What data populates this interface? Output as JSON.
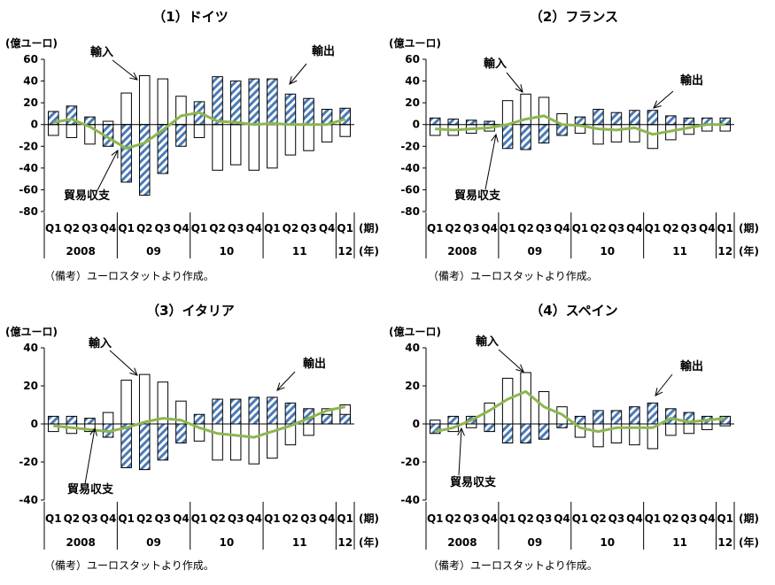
{
  "note": "（備考）ユーロスタットより作成。",
  "colors": {
    "export_bar": "#4a7ab8",
    "export_hatch_bg": "#ffffff",
    "import_bar_fill": "#ffffff",
    "balance_line": "#8db650",
    "axis": "#000000"
  },
  "chart_data": [
    {
      "type": "bar",
      "title": "（1）ドイツ",
      "unit_label": "(億ユーロ)",
      "period_label": "(期)",
      "year_label": "(年)",
      "categories": [
        "Q1",
        "Q2",
        "Q3",
        "Q4",
        "Q1",
        "Q2",
        "Q3",
        "Q4",
        "Q1",
        "Q2",
        "Q3",
        "Q4",
        "Q1",
        "Q2",
        "Q3",
        "Q4",
        "Q1"
      ],
      "year_groups": [
        {
          "label": "2008",
          "count": 4
        },
        {
          "label": "09",
          "count": 4
        },
        {
          "label": "10",
          "count": 4
        },
        {
          "label": "11",
          "count": 4
        },
        {
          "label": "12",
          "count": 1
        }
      ],
      "ylim": [
        -80,
        60
      ],
      "yticks": [
        60,
        40,
        20,
        0,
        -20,
        -40,
        -60,
        -80
      ],
      "annotations": {
        "export": "輸出",
        "import": "輸入",
        "balance": "貿易収支"
      },
      "series": [
        {
          "name": "輸出",
          "kind": "bar_hatched",
          "values": [
            12,
            17,
            7,
            -20,
            -53,
            -65,
            -45,
            -20,
            21,
            44,
            40,
            42,
            42,
            28,
            24,
            14,
            15
          ]
        },
        {
          "name": "輸入",
          "kind": "bar_outline",
          "values": [
            -10,
            -12,
            -18,
            3,
            29,
            45,
            42,
            26,
            -12,
            -42,
            -37,
            -42,
            -40,
            -28,
            -24,
            -16,
            -11
          ]
        },
        {
          "name": "貿易収支",
          "kind": "line",
          "values": [
            2,
            5,
            -2,
            -12,
            -22,
            -17,
            -5,
            8,
            11,
            3,
            2,
            0,
            1,
            0,
            0,
            0,
            5
          ]
        }
      ]
    },
    {
      "type": "bar",
      "title": "（2）フランス",
      "unit_label": "(億ユーロ)",
      "period_label": "(期)",
      "year_label": "(年)",
      "categories": [
        "Q1",
        "Q2",
        "Q3",
        "Q4",
        "Q1",
        "Q2",
        "Q3",
        "Q4",
        "Q1",
        "Q2",
        "Q3",
        "Q4",
        "Q1",
        "Q2",
        "Q3",
        "Q4",
        "Q1"
      ],
      "year_groups": [
        {
          "label": "2008",
          "count": 4
        },
        {
          "label": "09",
          "count": 4
        },
        {
          "label": "10",
          "count": 4
        },
        {
          "label": "11",
          "count": 4
        },
        {
          "label": "12",
          "count": 1
        }
      ],
      "ylim": [
        -80,
        60
      ],
      "yticks": [
        60,
        40,
        20,
        0,
        -20,
        -40,
        -60,
        -80
      ],
      "annotations": {
        "export": "輸出",
        "import": "輸入",
        "balance": "貿易収支"
      },
      "series": [
        {
          "name": "輸出",
          "kind": "bar_hatched",
          "values": [
            6,
            5,
            4,
            3,
            -22,
            -23,
            -17,
            -10,
            7,
            14,
            11,
            13,
            13,
            8,
            6,
            6,
            6
          ]
        },
        {
          "name": "輸入",
          "kind": "bar_outline",
          "values": [
            -10,
            -10,
            -8,
            -6,
            22,
            28,
            25,
            10,
            -8,
            -18,
            -16,
            -16,
            -22,
            -14,
            -9,
            -6,
            -6
          ]
        },
        {
          "name": "貿易収支",
          "kind": "line",
          "values": [
            -4,
            -5,
            -4,
            -3,
            0,
            5,
            8,
            0,
            -1,
            -4,
            -5,
            -3,
            -9,
            -6,
            -3,
            0,
            0
          ]
        }
      ]
    },
    {
      "type": "bar",
      "title": "（3）イタリア",
      "unit_label": "(億ユーロ)",
      "period_label": "(期)",
      "year_label": "(年)",
      "categories": [
        "Q1",
        "Q2",
        "Q3",
        "Q4",
        "Q1",
        "Q2",
        "Q3",
        "Q4",
        "Q1",
        "Q2",
        "Q3",
        "Q4",
        "Q1",
        "Q2",
        "Q3",
        "Q4",
        "Q1"
      ],
      "year_groups": [
        {
          "label": "2008",
          "count": 4
        },
        {
          "label": "09",
          "count": 4
        },
        {
          "label": "10",
          "count": 4
        },
        {
          "label": "11",
          "count": 4
        },
        {
          "label": "12",
          "count": 1
        }
      ],
      "ylim": [
        -40,
        40
      ],
      "yticks": [
        40,
        20,
        0,
        -20,
        -40
      ],
      "annotations": {
        "export": "輸出",
        "import": "輸入",
        "balance": "貿易収支"
      },
      "series": [
        {
          "name": "輸出",
          "kind": "bar_hatched",
          "values": [
            4,
            4,
            3,
            -7,
            -23,
            -24,
            -19,
            -10,
            5,
            13,
            13,
            14,
            14,
            11,
            8,
            5,
            5
          ]
        },
        {
          "name": "輸入",
          "kind": "bar_outline",
          "values": [
            -4,
            -5,
            -4,
            6,
            23,
            26,
            22,
            12,
            -9,
            -19,
            -19,
            -21,
            -18,
            -11,
            -6,
            8,
            10
          ]
        },
        {
          "name": "貿易収支",
          "kind": "line",
          "values": [
            -1,
            -2,
            -3,
            -4,
            -2,
            1,
            3,
            2,
            -2,
            -5,
            -6,
            -7,
            -4,
            -1,
            3,
            7,
            9
          ]
        }
      ]
    },
    {
      "type": "bar",
      "title": "（4）スペイン",
      "unit_label": "(億ユーロ)",
      "period_label": "(期)",
      "year_label": "(年)",
      "categories": [
        "Q1",
        "Q2",
        "Q3",
        "Q4",
        "Q1",
        "Q2",
        "Q3",
        "Q4",
        "Q1",
        "Q2",
        "Q3",
        "Q4",
        "Q1",
        "Q2",
        "Q3",
        "Q4",
        "Q1"
      ],
      "year_groups": [
        {
          "label": "2008",
          "count": 4
        },
        {
          "label": "09",
          "count": 4
        },
        {
          "label": "10",
          "count": 4
        },
        {
          "label": "11",
          "count": 4
        },
        {
          "label": "12",
          "count": 1
        }
      ],
      "ylim": [
        -40,
        40
      ],
      "yticks": [
        40,
        20,
        0,
        -20,
        -40
      ],
      "annotations": {
        "export": "輸出",
        "import": "輸入",
        "balance": "貿易収支"
      },
      "series": [
        {
          "name": "輸出",
          "kind": "bar_hatched",
          "values": [
            -5,
            4,
            4,
            -4,
            -10,
            -10,
            -8,
            -2,
            4,
            7,
            7,
            9,
            11,
            8,
            6,
            4,
            4
          ]
        },
        {
          "name": "輸入",
          "kind": "bar_outline",
          "values": [
            2,
            -4,
            -2,
            11,
            24,
            27,
            17,
            9,
            -7,
            -12,
            -10,
            -11,
            -13,
            -6,
            -5,
            -3,
            -1
          ]
        },
        {
          "name": "貿易収支",
          "kind": "line",
          "values": [
            -4,
            -2,
            2,
            7,
            13,
            17,
            9,
            5,
            -2,
            -4,
            -2,
            -2,
            -2,
            3,
            1,
            2,
            3
          ]
        }
      ]
    }
  ]
}
